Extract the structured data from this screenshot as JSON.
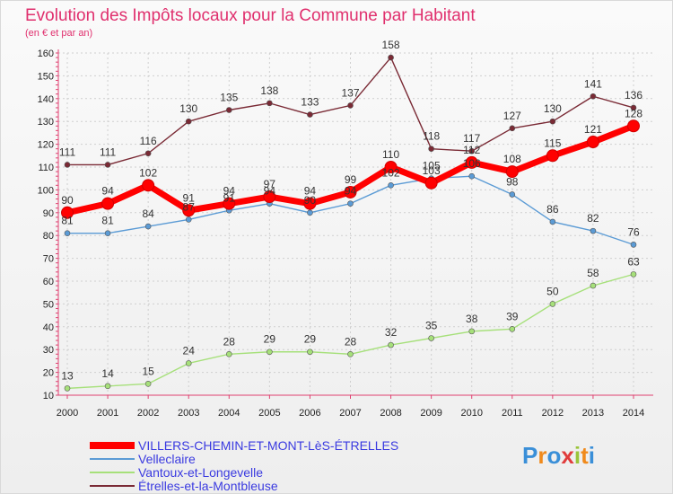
{
  "title": "Evolution des Impôts locaux pour la Commune par Habitant",
  "subtitle": "(en € et par an)",
  "logo_text": "Proxiti",
  "chart_data": {
    "type": "line",
    "x": [
      2000,
      2001,
      2002,
      2003,
      2004,
      2005,
      2006,
      2007,
      2008,
      2009,
      2010,
      2011,
      2012,
      2013,
      2014
    ],
    "ylim": [
      10,
      160
    ],
    "yticks": [
      10,
      20,
      30,
      40,
      50,
      60,
      70,
      80,
      90,
      100,
      110,
      120,
      130,
      140,
      150,
      160
    ],
    "grid": true,
    "legend": "bottom-left",
    "series": [
      {
        "name": "VILLERS-CHEMIN-ET-MONT-LèS-ÉTRELLES",
        "color": "#ff0000",
        "emphasis": true,
        "values": [
          90,
          94,
          102,
          91,
          94,
          97,
          94,
          99,
          110,
          103,
          112,
          108,
          115,
          121,
          128
        ]
      },
      {
        "name": "Velleclaire",
        "color": "#5b9bd5",
        "values": [
          81,
          81,
          84,
          87,
          91,
          94,
          90,
          94,
          102,
          105,
          106,
          98,
          86,
          82,
          76
        ]
      },
      {
        "name": "Vantoux-et-Longevelle",
        "color": "#a6e07a",
        "values": [
          13,
          14,
          15,
          24,
          28,
          29,
          29,
          28,
          32,
          35,
          38,
          39,
          50,
          58,
          63
        ]
      },
      {
        "name": "Étrelles-et-la-Montbleuse",
        "color": "#7a2a35",
        "values": [
          111,
          111,
          116,
          130,
          135,
          138,
          133,
          137,
          158,
          118,
          117,
          127,
          130,
          141,
          136
        ]
      }
    ]
  }
}
